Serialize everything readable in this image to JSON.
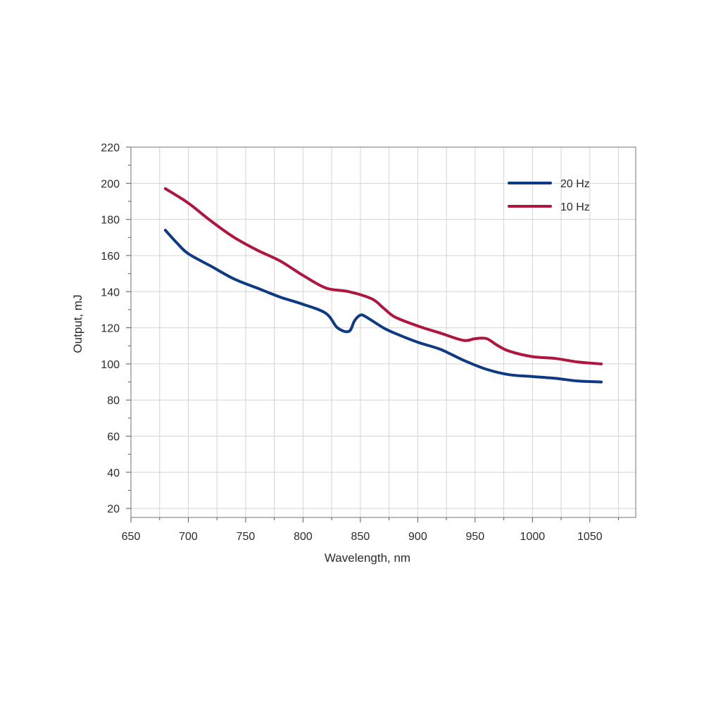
{
  "chart_data": {
    "type": "line",
    "xlabel": "Wavelength, nm",
    "ylabel": "Output, mJ",
    "xlim": [
      650,
      1090
    ],
    "ylim": [
      15,
      220
    ],
    "xticks": [
      650,
      700,
      750,
      800,
      850,
      900,
      950,
      1000,
      1050
    ],
    "yticks": [
      20,
      40,
      60,
      80,
      100,
      120,
      140,
      160,
      180,
      200,
      220
    ],
    "grid": true,
    "legend_position": "top-right",
    "series": [
      {
        "name": "20 Hz",
        "color": "#0e3a85",
        "x": [
          680,
          690,
          700,
          720,
          740,
          760,
          780,
          800,
          820,
          830,
          840,
          845,
          850,
          855,
          870,
          880,
          900,
          920,
          940,
          960,
          980,
          1000,
          1020,
          1040,
          1060
        ],
        "y": [
          174,
          167,
          161,
          154,
          147,
          142,
          137,
          133,
          128,
          120,
          118,
          124,
          127,
          126,
          120,
          117,
          112,
          108,
          102,
          97,
          94,
          93,
          92,
          90.5,
          90
        ]
      },
      {
        "name": "10 Hz",
        "color": "#b0153e",
        "x": [
          680,
          700,
          720,
          740,
          760,
          780,
          800,
          820,
          840,
          860,
          870,
          880,
          900,
          920,
          940,
          950,
          960,
          970,
          980,
          1000,
          1020,
          1040,
          1060
        ],
        "y": [
          197,
          189,
          179,
          170,
          163,
          157,
          149,
          142,
          140,
          136,
          131,
          126,
          121,
          117,
          113,
          114,
          114,
          110,
          107,
          104,
          103,
          101,
          100
        ]
      }
    ]
  }
}
